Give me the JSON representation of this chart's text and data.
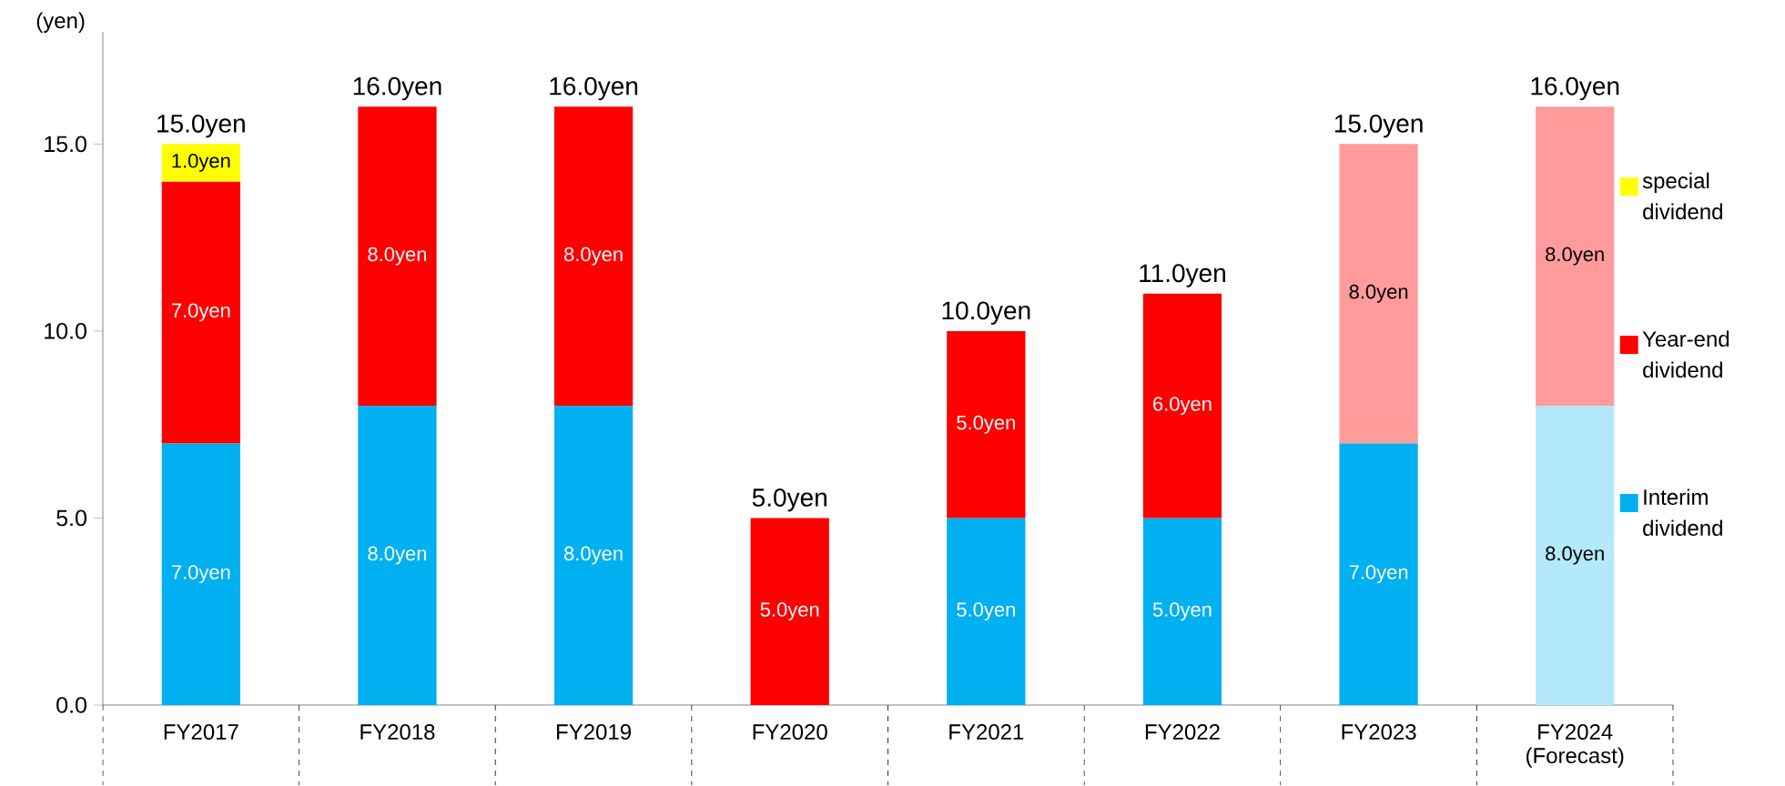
{
  "chart_data": {
    "type": "bar",
    "stacked": true,
    "ylabel": "(yen)",
    "categories": [
      "FY2017",
      "FY2018",
      "FY2019",
      "FY2020",
      "FY2021",
      "FY2022",
      "FY2023",
      "FY2024 (Forecast)"
    ],
    "series": [
      {
        "name": "Interim dividend",
        "colors": [
          "#00b0f0",
          "#00b0f0",
          "#00b0f0",
          "#00b0f0",
          "#00b0f0",
          "#00b0f0",
          "#00b0f0",
          "#b3e9fb"
        ],
        "values": [
          7,
          8,
          8,
          null,
          5,
          5,
          7,
          8
        ],
        "value_labels": [
          "7.0yen",
          "8.0yen",
          "8.0yen",
          null,
          "5.0yen",
          "5.0yen",
          "7.0yen",
          "8.0yen"
        ]
      },
      {
        "name": "Year-end dividend",
        "colors": [
          "#ff0000",
          "#ff0000",
          "#ff0000",
          "#ff0000",
          "#ff0000",
          "#ff0000",
          "#ff9b9b",
          "#ff9b9b"
        ],
        "values": [
          7,
          8,
          8,
          5,
          5,
          6,
          8,
          8
        ],
        "value_labels": [
          "7.0yen",
          "8.0yen",
          "8.0yen",
          "5.0yen",
          "5.0yen",
          "6.0yen",
          "8.0yen",
          "8.0yen"
        ]
      },
      {
        "name": "special dividend",
        "color": "#ffff00",
        "values": [
          1,
          null,
          null,
          null,
          null,
          null,
          null,
          null
        ],
        "value_labels": [
          "1.0yen",
          null,
          null,
          null,
          null,
          null,
          null,
          null
        ]
      }
    ],
    "totals": [
      "15.0yen",
      "16.0yen",
      "16.0yen",
      "5.0yen",
      "10.0yen",
      "11.0yen",
      "15.0yen",
      "16.0yen"
    ],
    "ylim": [
      0,
      18
    ],
    "yticks": [
      {
        "value": 0,
        "label": "0.0"
      },
      {
        "value": 5,
        "label": "5.0"
      },
      {
        "value": 10,
        "label": "10.0"
      },
      {
        "value": 15,
        "label": "15.0"
      }
    ],
    "legend": "right",
    "grid": false
  }
}
